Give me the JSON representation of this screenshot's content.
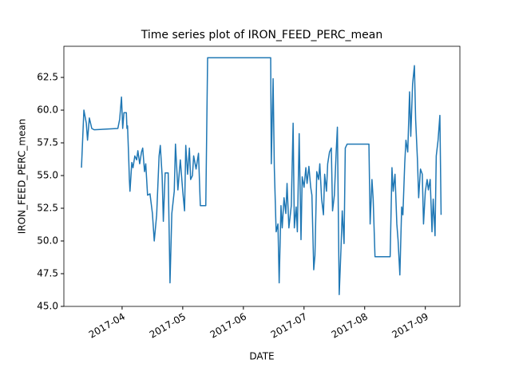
{
  "chart_data": {
    "type": "line",
    "title": "Time series plot of IRON_FEED_PERC_mean",
    "x_label": "DATE",
    "y_label": "IRON_FEED_PERC_mean",
    "color": "#1f77b4",
    "grid": false,
    "x": [
      3.33,
      3.37,
      3.41,
      3.43,
      3.46,
      3.5,
      3.54,
      3.93,
      3.96,
      3.99,
      4.01,
      4.03,
      4.07,
      4.08,
      4.09,
      4.11,
      4.12,
      4.13,
      4.16,
      4.18,
      4.21,
      4.24,
      4.26,
      4.29,
      4.32,
      4.34,
      4.37,
      4.39,
      4.42,
      4.46,
      4.5,
      4.53,
      4.57,
      4.61,
      4.63,
      4.66,
      4.68,
      4.71,
      4.76,
      4.79,
      4.82,
      4.86,
      4.88,
      4.92,
      4.96,
      5.0,
      5.03,
      5.05,
      5.08,
      5.11,
      5.13,
      5.16,
      5.18,
      5.22,
      5.26,
      5.29,
      5.38,
      5.41,
      6.45,
      6.46,
      6.49,
      6.51,
      6.54,
      6.57,
      6.59,
      6.62,
      6.64,
      6.67,
      6.7,
      6.72,
      6.75,
      6.79,
      6.82,
      6.84,
      6.87,
      6.89,
      6.92,
      6.95,
      6.97,
      7.0,
      7.03,
      7.05,
      7.08,
      7.11,
      7.13,
      7.16,
      7.18,
      7.21,
      7.24,
      7.26,
      7.29,
      7.32,
      7.34,
      7.37,
      7.39,
      7.42,
      7.45,
      7.47,
      7.5,
      7.53,
      7.55,
      7.58,
      7.61,
      7.63,
      7.66,
      7.68,
      7.71,
      8.07,
      8.09,
      8.12,
      8.14,
      8.17,
      8.42,
      8.45,
      8.47,
      8.5,
      8.53,
      8.55,
      8.58,
      8.61,
      8.63,
      8.66,
      8.68,
      8.71,
      8.74,
      8.76,
      8.79,
      8.82,
      8.84,
      8.87,
      8.89,
      8.92,
      8.95,
      8.97,
      9.0,
      9.03,
      9.05,
      9.08,
      9.11,
      9.13,
      9.16,
      9.18,
      9.21,
      9.24,
      9.26
    ],
    "values": [
      55.6,
      60.0,
      59.0,
      57.7,
      59.4,
      58.6,
      58.5,
      58.6,
      59.3,
      61.0,
      58.6,
      59.8,
      59.8,
      58.6,
      58.8,
      56.2,
      54.7,
      53.8,
      56.0,
      55.6,
      56.5,
      56.2,
      56.9,
      55.9,
      56.8,
      57.1,
      55.3,
      55.9,
      53.5,
      53.6,
      52.1,
      50.0,
      52.0,
      56.5,
      57.3,
      55.0,
      51.5,
      55.2,
      55.2,
      46.8,
      52.1,
      53.8,
      57.4,
      53.9,
      56.2,
      53.8,
      52.3,
      57.3,
      55.1,
      57.1,
      54.7,
      55.0,
      56.5,
      55.5,
      56.7,
      52.7,
      52.7,
      64.0,
      64.0,
      55.9,
      62.4,
      55.6,
      50.7,
      51.3,
      46.8,
      52.7,
      51.0,
      53.3,
      52.1,
      54.4,
      51.0,
      52.7,
      59.0,
      51.0,
      52.6,
      50.7,
      58.2,
      50.1,
      54.9,
      54.1,
      55.6,
      54.4,
      55.7,
      54.1,
      53.5,
      47.8,
      48.9,
      55.3,
      54.7,
      55.9,
      53.2,
      52.0,
      55.1,
      53.8,
      55.9,
      56.8,
      57.1,
      52.3,
      53.5,
      56.8,
      58.7,
      45.9,
      49.5,
      52.3,
      49.8,
      57.1,
      57.4,
      57.4,
      51.3,
      54.7,
      53.2,
      48.8,
      48.8,
      55.6,
      53.8,
      55.1,
      51.3,
      50.1,
      47.4,
      52.6,
      52.0,
      55.9,
      57.7,
      56.8,
      61.4,
      58.0,
      62.0,
      63.4,
      59.3,
      56.2,
      53.3,
      55.5,
      55.1,
      51.3,
      53.8,
      54.7,
      53.9,
      54.7,
      50.7,
      53.2,
      50.4,
      56.5,
      57.7,
      59.6,
      52.0
    ],
    "xlim": [
      3.04,
      9.57
    ],
    "xticks": [
      {
        "value": 4,
        "label": "2017-04"
      },
      {
        "value": 5,
        "label": "2017-05"
      },
      {
        "value": 6,
        "label": "2017-06"
      },
      {
        "value": 7,
        "label": "2017-07"
      },
      {
        "value": 8,
        "label": "2017-08"
      },
      {
        "value": 9,
        "label": "2017-09"
      }
    ],
    "ylim": [
      45,
      64.88
    ],
    "yticks": [
      {
        "value": 45,
        "label": "45.0"
      },
      47.5,
      {
        "value": 50,
        "label": "50.0"
      },
      52.5,
      {
        "value": 55,
        "label": "55.0"
      },
      57.5,
      {
        "value": 60,
        "label": "60.0"
      },
      62.5
    ]
  }
}
